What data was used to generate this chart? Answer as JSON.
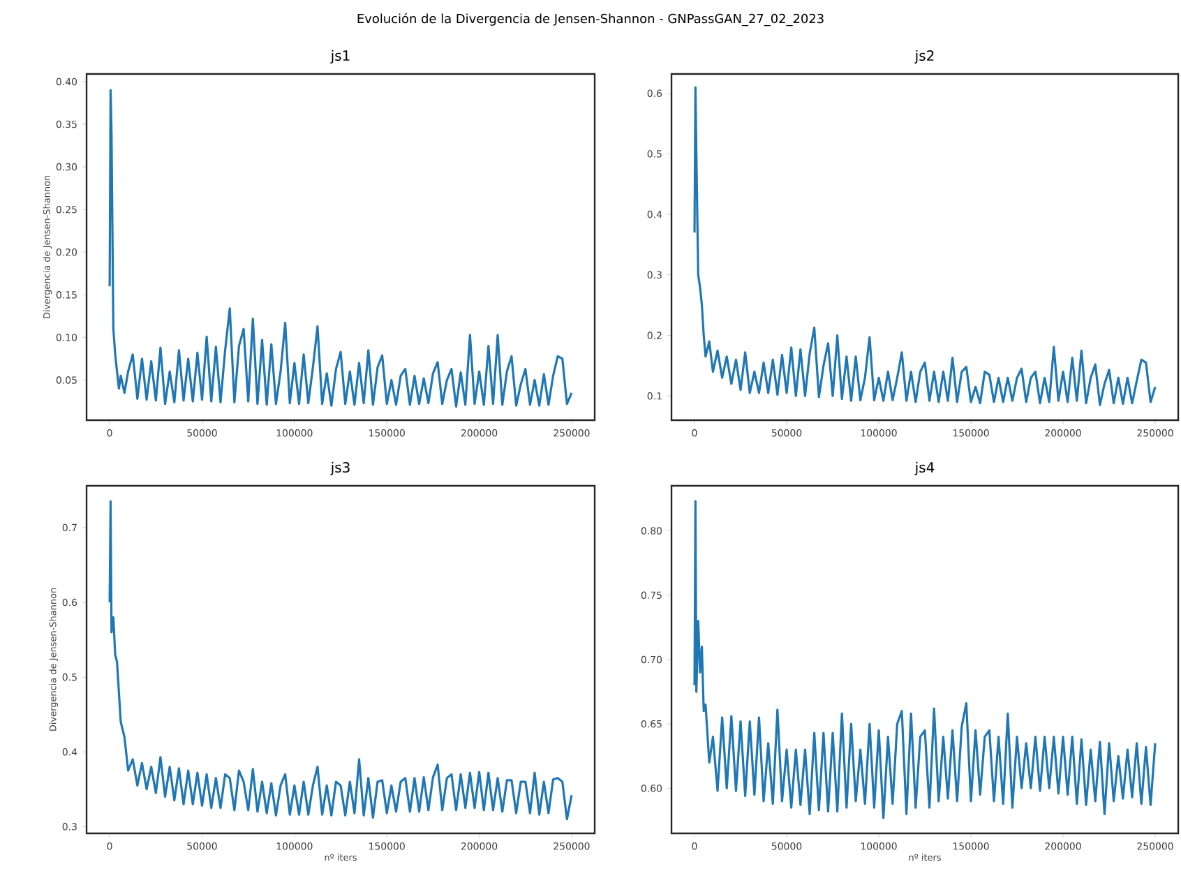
{
  "chart_data": [
    {
      "type": "line",
      "title": "js1",
      "ylabel": "Divergencia de Jensen-Shannon",
      "annotations": [
        "Evolución de la Divergencia de Jensen-Shannon - GNPassGAN_27_02_2023"
      ],
      "color": "#1f77b4",
      "xlim": [
        -12500,
        262500
      ],
      "ylim": [
        0.003,
        0.409
      ],
      "xticks": [
        0,
        50000,
        100000,
        150000,
        200000,
        250000
      ],
      "yticks": [
        {
          "value": 0.05,
          "label": "0.05"
        },
        {
          "value": 0.1,
          "label": "0.10"
        },
        {
          "value": 0.15,
          "label": "0.15"
        },
        {
          "value": 0.2,
          "label": "0.20"
        },
        {
          "value": 0.25,
          "label": "0.25"
        },
        {
          "value": 0.3,
          "label": "0.30"
        },
        {
          "value": 0.35,
          "label": "0.35"
        },
        {
          "value": 0.4,
          "label": "0.40"
        }
      ],
      "x": [
        0,
        500,
        1000,
        2000,
        3000,
        4000,
        5000,
        6000,
        8000,
        10000,
        12500,
        15000,
        17500,
        20000,
        22500,
        25000,
        27500,
        30000,
        32500,
        35000,
        37500,
        40000,
        42500,
        45000,
        47500,
        50000,
        52500,
        55000,
        57500,
        60000,
        62500,
        65000,
        67500,
        70000,
        72500,
        75000,
        77500,
        80000,
        82500,
        85000,
        87500,
        90000,
        92500,
        95000,
        97500,
        100000,
        102500,
        105000,
        107500,
        110000,
        112500,
        115000,
        117500,
        120000,
        122500,
        125000,
        127500,
        130000,
        132500,
        135000,
        137500,
        140000,
        142500,
        145000,
        147500,
        150000,
        152500,
        155000,
        157500,
        160000,
        162500,
        165000,
        167500,
        170000,
        172500,
        175000,
        177500,
        180000,
        182500,
        185000,
        187500,
        190000,
        192500,
        195000,
        197500,
        200000,
        202500,
        205000,
        207500,
        210000,
        212500,
        215000,
        217500,
        220000,
        222500,
        225000,
        227500,
        230000,
        232500,
        235000,
        237500,
        240000,
        242500,
        245000,
        247500,
        250000
      ],
      "values": [
        0.16,
        0.39,
        0.34,
        0.11,
        0.08,
        0.06,
        0.04,
        0.055,
        0.035,
        0.06,
        0.08,
        0.028,
        0.075,
        0.027,
        0.072,
        0.026,
        0.088,
        0.022,
        0.06,
        0.024,
        0.085,
        0.026,
        0.075,
        0.025,
        0.082,
        0.027,
        0.101,
        0.025,
        0.089,
        0.024,
        0.085,
        0.134,
        0.024,
        0.09,
        0.11,
        0.025,
        0.122,
        0.022,
        0.097,
        0.021,
        0.092,
        0.022,
        0.06,
        0.117,
        0.023,
        0.07,
        0.022,
        0.08,
        0.023,
        0.065,
        0.113,
        0.022,
        0.058,
        0.02,
        0.063,
        0.083,
        0.022,
        0.06,
        0.021,
        0.07,
        0.023,
        0.085,
        0.021,
        0.065,
        0.079,
        0.022,
        0.05,
        0.021,
        0.055,
        0.063,
        0.021,
        0.055,
        0.022,
        0.052,
        0.023,
        0.058,
        0.071,
        0.022,
        0.05,
        0.063,
        0.019,
        0.059,
        0.021,
        0.103,
        0.022,
        0.06,
        0.021,
        0.09,
        0.022,
        0.103,
        0.021,
        0.06,
        0.078,
        0.02,
        0.045,
        0.063,
        0.021,
        0.05,
        0.02,
        0.057,
        0.021,
        0.055,
        0.078,
        0.075,
        0.022,
        0.035
      ]
    },
    {
      "type": "line",
      "title": "js2",
      "color": "#1f77b4",
      "xlim": [
        -12500,
        262500
      ],
      "ylim": [
        0.06,
        0.632
      ],
      "xticks": [
        0,
        50000,
        100000,
        150000,
        200000,
        250000
      ],
      "yticks": [
        0.1,
        0.2,
        0.3,
        0.4,
        0.5,
        0.6
      ],
      "x": [
        0,
        500,
        1000,
        2000,
        3000,
        4000,
        5000,
        6000,
        8000,
        10000,
        12500,
        15000,
        17500,
        20000,
        22500,
        25000,
        27500,
        30000,
        32500,
        35000,
        37500,
        40000,
        42500,
        45000,
        47500,
        50000,
        52500,
        55000,
        57500,
        60000,
        62500,
        65000,
        67500,
        70000,
        72500,
        75000,
        77500,
        80000,
        82500,
        85000,
        87500,
        90000,
        92500,
        95000,
        97500,
        100000,
        102500,
        105000,
        107500,
        110000,
        112500,
        115000,
        117500,
        120000,
        122500,
        125000,
        127500,
        130000,
        132500,
        135000,
        137500,
        140000,
        142500,
        145000,
        147500,
        150000,
        152500,
        155000,
        157500,
        160000,
        162500,
        165000,
        167500,
        170000,
        172500,
        175000,
        177500,
        180000,
        182500,
        185000,
        187500,
        190000,
        192500,
        195000,
        197500,
        200000,
        202500,
        205000,
        207500,
        210000,
        212500,
        215000,
        217500,
        220000,
        222500,
        225000,
        227500,
        230000,
        232500,
        235000,
        237500,
        240000,
        242500,
        245000,
        247500,
        250000
      ],
      "values": [
        0.37,
        0.61,
        0.5,
        0.3,
        0.28,
        0.25,
        0.2,
        0.165,
        0.19,
        0.14,
        0.175,
        0.13,
        0.165,
        0.12,
        0.16,
        0.11,
        0.172,
        0.105,
        0.14,
        0.105,
        0.155,
        0.105,
        0.16,
        0.102,
        0.168,
        0.105,
        0.18,
        0.1,
        0.177,
        0.1,
        0.17,
        0.213,
        0.098,
        0.15,
        0.187,
        0.1,
        0.2,
        0.095,
        0.165,
        0.092,
        0.165,
        0.093,
        0.13,
        0.197,
        0.093,
        0.13,
        0.092,
        0.14,
        0.093,
        0.13,
        0.172,
        0.092,
        0.14,
        0.09,
        0.14,
        0.155,
        0.092,
        0.14,
        0.09,
        0.14,
        0.092,
        0.163,
        0.09,
        0.14,
        0.148,
        0.09,
        0.115,
        0.088,
        0.14,
        0.135,
        0.09,
        0.13,
        0.09,
        0.13,
        0.092,
        0.13,
        0.145,
        0.09,
        0.13,
        0.14,
        0.088,
        0.13,
        0.09,
        0.181,
        0.092,
        0.14,
        0.09,
        0.163,
        0.092,
        0.175,
        0.088,
        0.13,
        0.152,
        0.085,
        0.12,
        0.143,
        0.088,
        0.13,
        0.087,
        0.13,
        0.088,
        0.125,
        0.16,
        0.155,
        0.09,
        0.115
      ]
    },
    {
      "type": "line",
      "title": "js3",
      "xlabel": "nº iters",
      "ylabel": "Divergencia de Jensen-Shannon",
      "color": "#1f77b4",
      "xlim": [
        -12500,
        262500
      ],
      "ylim": [
        0.291,
        0.756
      ],
      "xticks": [
        0,
        50000,
        100000,
        150000,
        200000,
        250000
      ],
      "yticks": [
        0.3,
        0.4,
        0.5,
        0.6,
        0.7
      ],
      "x": [
        0,
        500,
        1000,
        2000,
        3000,
        4000,
        5000,
        6000,
        8000,
        10000,
        12500,
        15000,
        17500,
        20000,
        22500,
        25000,
        27500,
        30000,
        32500,
        35000,
        37500,
        40000,
        42500,
        45000,
        47500,
        50000,
        52500,
        55000,
        57500,
        60000,
        62500,
        65000,
        67500,
        70000,
        72500,
        75000,
        77500,
        80000,
        82500,
        85000,
        87500,
        90000,
        92500,
        95000,
        97500,
        100000,
        102500,
        105000,
        107500,
        110000,
        112500,
        115000,
        117500,
        120000,
        122500,
        125000,
        127500,
        130000,
        132500,
        135000,
        137500,
        140000,
        142500,
        145000,
        147500,
        150000,
        152500,
        155000,
        157500,
        160000,
        162500,
        165000,
        167500,
        170000,
        172500,
        175000,
        177500,
        180000,
        182500,
        185000,
        187500,
        190000,
        192500,
        195000,
        197500,
        200000,
        202500,
        205000,
        207500,
        210000,
        212500,
        215000,
        217500,
        220000,
        222500,
        225000,
        227500,
        230000,
        232500,
        235000,
        237500,
        240000,
        242500,
        245000,
        247500,
        250000
      ],
      "values": [
        0.6,
        0.735,
        0.56,
        0.58,
        0.53,
        0.52,
        0.48,
        0.44,
        0.42,
        0.375,
        0.39,
        0.355,
        0.385,
        0.35,
        0.38,
        0.345,
        0.393,
        0.34,
        0.38,
        0.335,
        0.378,
        0.33,
        0.375,
        0.33,
        0.372,
        0.328,
        0.37,
        0.325,
        0.365,
        0.325,
        0.37,
        0.365,
        0.322,
        0.375,
        0.36,
        0.322,
        0.377,
        0.32,
        0.36,
        0.318,
        0.358,
        0.315,
        0.355,
        0.37,
        0.316,
        0.355,
        0.316,
        0.36,
        0.316,
        0.355,
        0.38,
        0.316,
        0.355,
        0.315,
        0.36,
        0.355,
        0.315,
        0.36,
        0.318,
        0.39,
        0.315,
        0.365,
        0.312,
        0.36,
        0.362,
        0.318,
        0.355,
        0.32,
        0.36,
        0.365,
        0.32,
        0.365,
        0.32,
        0.366,
        0.322,
        0.366,
        0.383,
        0.322,
        0.365,
        0.37,
        0.322,
        0.37,
        0.325,
        0.372,
        0.325,
        0.373,
        0.322,
        0.372,
        0.322,
        0.365,
        0.32,
        0.362,
        0.362,
        0.318,
        0.36,
        0.36,
        0.318,
        0.372,
        0.316,
        0.36,
        0.318,
        0.363,
        0.365,
        0.36,
        0.31,
        0.342
      ]
    },
    {
      "type": "line",
      "title": "js4",
      "xlabel": "nº iters",
      "color": "#1f77b4",
      "xlim": [
        -12500,
        262500
      ],
      "ylim": [
        0.565,
        0.835
      ],
      "xticks": [
        0,
        50000,
        100000,
        150000,
        200000,
        250000
      ],
      "yticks": [
        {
          "value": 0.6,
          "label": "0.60"
        },
        {
          "value": 0.65,
          "label": "0.65"
        },
        {
          "value": 0.7,
          "label": "0.70"
        },
        {
          "value": 0.75,
          "label": "0.75"
        },
        {
          "value": 0.8,
          "label": "0.80"
        }
      ],
      "x": [
        0,
        500,
        1000,
        2000,
        3000,
        4000,
        5000,
        6000,
        8000,
        10000,
        12500,
        15000,
        17500,
        20000,
        22500,
        25000,
        27500,
        30000,
        32500,
        35000,
        37500,
        40000,
        42500,
        45000,
        47500,
        50000,
        52500,
        55000,
        57500,
        60000,
        62500,
        65000,
        67500,
        70000,
        72500,
        75000,
        77500,
        80000,
        82500,
        85000,
        87500,
        90000,
        92500,
        95000,
        97500,
        100000,
        102500,
        105000,
        107500,
        110000,
        112500,
        115000,
        117500,
        120000,
        122500,
        125000,
        127500,
        130000,
        132500,
        135000,
        137500,
        140000,
        142500,
        145000,
        147500,
        150000,
        152500,
        155000,
        157500,
        160000,
        162500,
        165000,
        167500,
        170000,
        172500,
        175000,
        177500,
        180000,
        182500,
        185000,
        187500,
        190000,
        192500,
        195000,
        197500,
        200000,
        202500,
        205000,
        207500,
        210000,
        212500,
        215000,
        217500,
        220000,
        222500,
        225000,
        227500,
        230000,
        232500,
        235000,
        237500,
        240000,
        242500,
        245000,
        247500,
        250000
      ],
      "values": [
        0.68,
        0.823,
        0.675,
        0.73,
        0.69,
        0.71,
        0.66,
        0.665,
        0.62,
        0.64,
        0.598,
        0.655,
        0.6,
        0.656,
        0.598,
        0.652,
        0.594,
        0.652,
        0.595,
        0.655,
        0.59,
        0.635,
        0.588,
        0.661,
        0.59,
        0.63,
        0.585,
        0.63,
        0.587,
        0.63,
        0.58,
        0.643,
        0.583,
        0.643,
        0.582,
        0.643,
        0.582,
        0.658,
        0.585,
        0.65,
        0.59,
        0.63,
        0.588,
        0.65,
        0.585,
        0.645,
        0.577,
        0.64,
        0.588,
        0.65,
        0.66,
        0.58,
        0.658,
        0.585,
        0.64,
        0.645,
        0.585,
        0.662,
        0.59,
        0.64,
        0.592,
        0.645,
        0.59,
        0.648,
        0.666,
        0.59,
        0.645,
        0.595,
        0.64,
        0.645,
        0.59,
        0.64,
        0.588,
        0.658,
        0.585,
        0.64,
        0.6,
        0.635,
        0.6,
        0.64,
        0.598,
        0.64,
        0.6,
        0.64,
        0.596,
        0.64,
        0.595,
        0.64,
        0.588,
        0.638,
        0.587,
        0.63,
        0.59,
        0.636,
        0.58,
        0.635,
        0.59,
        0.625,
        0.592,
        0.63,
        0.593,
        0.635,
        0.588,
        0.632,
        0.587,
        0.635
      ]
    }
  ]
}
